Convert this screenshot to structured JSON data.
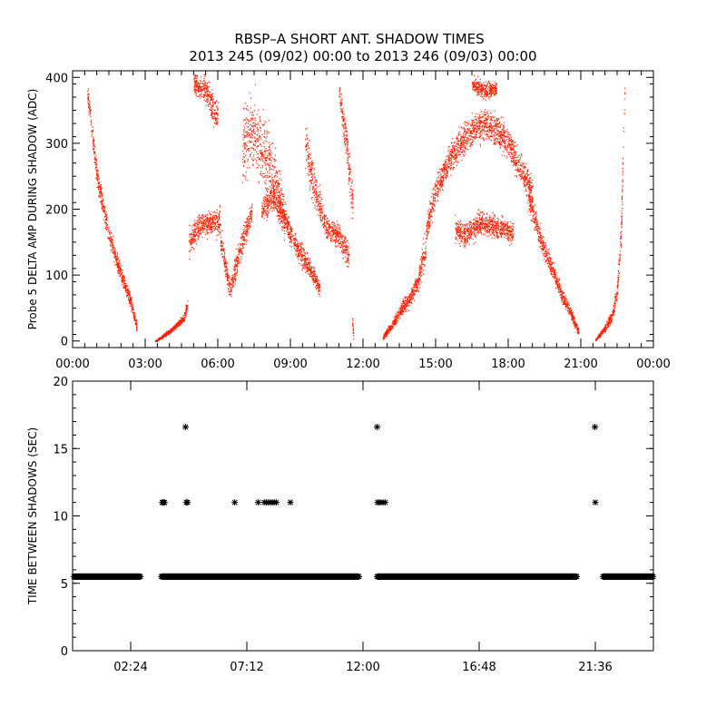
{
  "title": "RBSP–A SHORT ANT. SHADOW TIMES",
  "subtitle": "2013 245 (09/02) 00:00 to 2013 246 (09/03) 00:00",
  "colors": {
    "amp_points": "#ff2000",
    "time_points": "#000000",
    "axes": "#000000"
  },
  "chart_data": [
    {
      "type": "scatter",
      "ylabel": "Probe 5 DELTA AMP DURING SHADOW (ADC)",
      "xlabel": "",
      "xlim": [
        "00:00",
        "24:00"
      ],
      "ylim": [
        -10,
        410
      ],
      "x_ticks": [
        "00:00",
        "03:00",
        "06:00",
        "09:00",
        "12:00",
        "15:00",
        "18:00",
        "21:00",
        "00:00"
      ],
      "y_ticks": [
        "0",
        "100",
        "200",
        "300",
        "400"
      ],
      "grid": false,
      "point_clouds": [
        {
          "x": [
            0.6,
            1.0,
            1.5,
            2.0,
            2.4,
            2.65
          ],
          "y_center": [
            380,
            250,
            160,
            100,
            60,
            20
          ],
          "spread": [
            20,
            25,
            20,
            18,
            15,
            10
          ]
        },
        {
          "x": [
            3.4,
            3.9,
            4.3,
            4.6,
            4.75
          ],
          "y_center": [
            0,
            12,
            25,
            35,
            60
          ],
          "spread": [
            2,
            5,
            6,
            8,
            15
          ]
        },
        {
          "x": [
            4.8,
            5.2,
            5.7,
            6.1
          ],
          "y_center": [
            150,
            175,
            180,
            180
          ],
          "spread": [
            30,
            25,
            25,
            30
          ]
        },
        {
          "x": [
            5.0,
            5.5,
            6.0
          ],
          "y_center": [
            390,
            380,
            340
          ],
          "spread": [
            20,
            30,
            40
          ]
        },
        {
          "x": [
            6.1,
            6.5,
            7.0,
            7.4
          ],
          "y_center": [
            150,
            80,
            150,
            200
          ],
          "spread": [
            30,
            25,
            30,
            25
          ]
        },
        {
          "x": [
            7.0,
            7.5,
            8.0,
            8.5,
            8.8
          ],
          "y_center": [
            300,
            320,
            280,
            220,
            180
          ],
          "spread": [
            80,
            80,
            80,
            60,
            40
          ]
        },
        {
          "x": [
            7.8,
            8.3,
            8.8,
            9.3,
            9.8,
            10.2
          ],
          "y_center": [
            200,
            220,
            180,
            140,
            110,
            80
          ],
          "spread": [
            25,
            30,
            30,
            25,
            20,
            20
          ]
        },
        {
          "x": [
            9.6,
            10.0,
            10.5,
            11.0,
            11.4
          ],
          "y_center": [
            300,
            230,
            170,
            160,
            130
          ],
          "spread": [
            60,
            40,
            25,
            25,
            30
          ]
        },
        {
          "x": [
            11.0,
            11.3,
            11.6
          ],
          "y_center": [
            380,
            300,
            200
          ],
          "spread": [
            20,
            40,
            50
          ]
        },
        {
          "x": [
            11.55,
            11.6
          ],
          "y_center": [
            30,
            5
          ],
          "spread": [
            15,
            5
          ]
        },
        {
          "x": [
            12.8,
            13.2,
            13.6,
            14.0,
            14.3,
            14.6
          ],
          "y_center": [
            5,
            25,
            50,
            70,
            95,
            150
          ],
          "spread": [
            5,
            10,
            15,
            20,
            25,
            40
          ]
        },
        {
          "x": [
            14.6,
            15.0,
            15.5,
            16.0,
            16.5,
            17.0,
            17.5,
            18.0,
            18.5,
            19.0
          ],
          "y_center": [
            170,
            230,
            270,
            300,
            320,
            330,
            320,
            300,
            260,
            230
          ],
          "spread": [
            30,
            30,
            30,
            35,
            35,
            35,
            35,
            35,
            30,
            30
          ]
        },
        {
          "x": [
            15.8,
            16.2,
            16.8,
            17.3,
            17.8,
            18.2
          ],
          "y_center": [
            170,
            160,
            180,
            175,
            170,
            165
          ],
          "spread": [
            25,
            25,
            25,
            25,
            25,
            25
          ]
        },
        {
          "x": [
            16.5,
            17.0,
            17.5
          ],
          "y_center": [
            390,
            380,
            385
          ],
          "spread": [
            15,
            20,
            15
          ]
        },
        {
          "x": [
            18.8,
            19.3,
            19.8,
            20.2,
            20.6,
            20.9
          ],
          "y_center": [
            220,
            160,
            110,
            70,
            40,
            15
          ],
          "spread": [
            30,
            25,
            20,
            15,
            12,
            8
          ]
        },
        {
          "x": [
            21.6,
            22.0,
            22.3,
            22.5,
            22.65,
            22.8
          ],
          "y_center": [
            2,
            20,
            40,
            80,
            160,
            380
          ],
          "spread": [
            2,
            8,
            12,
            20,
            40,
            30
          ]
        }
      ]
    },
    {
      "type": "scatter",
      "ylabel": "TIME BETWEEN SHADOWS (SEC)",
      "xlabel": "",
      "xlim": [
        "00:00",
        "24:00"
      ],
      "ylim": [
        0,
        20
      ],
      "x_ticks": [
        "02:24",
        "07:12",
        "12:00",
        "16:48",
        "21:36"
      ],
      "y_ticks": [
        "0",
        "5",
        "10",
        "15",
        "20"
      ],
      "grid": false,
      "marker": "asterisk",
      "baseline": {
        "y": 5.5,
        "segments": [
          [
            "00:03",
            "02:48"
          ],
          [
            "03:40",
            "11:50"
          ],
          [
            "12:35",
            "20:50"
          ],
          [
            "21:55",
            "24:00"
          ]
        ]
      },
      "points": [
        {
          "x": "03:42",
          "y": 11
        },
        {
          "x": "03:45",
          "y": 11
        },
        {
          "x": "03:48",
          "y": 11
        },
        {
          "x": "04:40",
          "y": 16.6
        },
        {
          "x": "04:42",
          "y": 11
        },
        {
          "x": "04:45",
          "y": 11
        },
        {
          "x": "06:42",
          "y": 11
        },
        {
          "x": "07:40",
          "y": 11
        },
        {
          "x": "07:55",
          "y": 11
        },
        {
          "x": "08:00",
          "y": 11
        },
        {
          "x": "08:05",
          "y": 11
        },
        {
          "x": "08:10",
          "y": 11
        },
        {
          "x": "08:15",
          "y": 11
        },
        {
          "x": "08:20",
          "y": 11
        },
        {
          "x": "08:25",
          "y": 11
        },
        {
          "x": "09:00",
          "y": 11
        },
        {
          "x": "12:35",
          "y": 16.6
        },
        {
          "x": "12:36",
          "y": 11
        },
        {
          "x": "12:40",
          "y": 11
        },
        {
          "x": "12:45",
          "y": 11
        },
        {
          "x": "12:50",
          "y": 11
        },
        {
          "x": "12:55",
          "y": 11
        },
        {
          "x": "21:35",
          "y": 16.6
        },
        {
          "x": "21:36",
          "y": 11
        }
      ]
    }
  ]
}
